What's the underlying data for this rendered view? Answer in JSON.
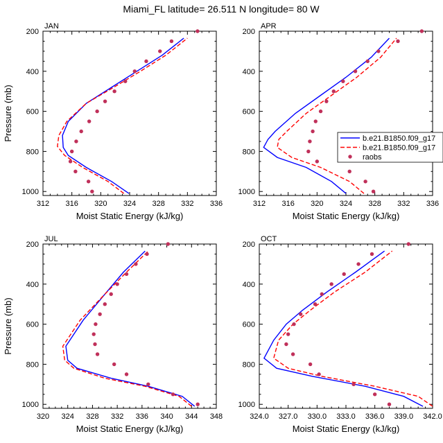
{
  "page_title": "Miami_FL  latitude= 26.511 N longitude= 80 W",
  "legend": {
    "entries": [
      {
        "label": "b.e21.B1850.f09_g17",
        "color": "#0000ff",
        "style": "solid"
      },
      {
        "label": "b.e21.B1850.f09_g17",
        "color": "#ff0000",
        "style": "dashed"
      },
      {
        "label": "raobs",
        "color": "#c0305a",
        "style": "marker"
      }
    ]
  },
  "colors": {
    "model1": "#0000ff",
    "model2": "#ff0000",
    "raobs": "#c0305a"
  },
  "chart_data": [
    {
      "type": "line",
      "title": "JAN",
      "xlabel": "Moist Static Energy (kJ/kg)",
      "ylabel": "Pressure (mb)",
      "xlim": [
        312,
        336
      ],
      "ylim": [
        1020,
        200
      ],
      "xticks": [
        "312",
        "316",
        "320",
        "324",
        "328",
        "332",
        "336"
      ],
      "yticks": [
        "200",
        "400",
        "600",
        "800",
        "1000"
      ],
      "series": [
        {
          "name": "b.e21.B1850.f09_g17",
          "x": [
            323.9,
            321.5,
            318.0,
            315.5,
            314.8,
            314.7,
            315.5,
            318.0,
            321.5,
            325.0,
            328.5,
            331.5
          ],
          "y": [
            1010,
            950,
            880,
            820,
            780,
            720,
            650,
            560,
            480,
            400,
            320,
            235
          ]
        },
        {
          "name": "b.e21.B1850.f09_g17",
          "x": [
            323.2,
            321.0,
            317.5,
            315.0,
            314.0,
            314.2,
            315.3,
            318.0,
            321.8,
            325.5,
            329.0,
            332.0
          ],
          "y": [
            1010,
            950,
            880,
            820,
            775,
            720,
            650,
            560,
            480,
            400,
            320,
            235
          ]
        },
        {
          "name": "raobs",
          "x": [
            318.8,
            318.3,
            316.5,
            315.8,
            316.0,
            316.6,
            317.3,
            318.4,
            319.5,
            320.6,
            321.9,
            323.4,
            324.7,
            326.3,
            328.2,
            329.8,
            333.4
          ],
          "y": [
            1000,
            950,
            900,
            850,
            800,
            750,
            700,
            650,
            600,
            550,
            500,
            450,
            400,
            350,
            300,
            250,
            200
          ]
        }
      ]
    },
    {
      "type": "line",
      "title": "APR",
      "xlabel": "Moist Static Energy (kJ/kg)",
      "ylabel": "",
      "xlim": [
        312,
        336
      ],
      "ylim": [
        1020,
        200
      ],
      "xticks": [
        "312",
        "316",
        "320",
        "324",
        "328",
        "332",
        "336"
      ],
      "yticks": [
        "200",
        "400",
        "600",
        "800",
        "1000"
      ],
      "series": [
        {
          "name": "b.e21.B1850.f09_g17",
          "x": [
            324.0,
            322.0,
            318.5,
            314.5,
            312.6,
            313.2,
            314.2,
            317.0,
            320.5,
            324.0,
            327.5,
            330.0
          ],
          "y": [
            1010,
            950,
            880,
            830,
            780,
            740,
            700,
            610,
            520,
            430,
            330,
            235
          ]
        },
        {
          "name": "b.e21.B1850.f09_g17",
          "x": [
            326.5,
            324.5,
            320.5,
            316.5,
            314.5,
            314.7,
            315.8,
            318.5,
            322.0,
            325.5,
            328.8,
            331.0
          ],
          "y": [
            1010,
            950,
            880,
            830,
            780,
            740,
            700,
            610,
            520,
            430,
            330,
            235
          ]
        },
        {
          "name": "raobs",
          "x": [
            327.8,
            326.7,
            324.5,
            320.0,
            318.8,
            319.0,
            319.4,
            319.8,
            320.5,
            321.3,
            322.3,
            323.6,
            325.3,
            327.0,
            328.5,
            331.2,
            334.5
          ],
          "y": [
            1000,
            950,
            900,
            850,
            800,
            750,
            700,
            650,
            600,
            550,
            500,
            450,
            400,
            350,
            300,
            250,
            200
          ]
        }
      ]
    },
    {
      "type": "line",
      "title": "JUL",
      "xlabel": "Moist Static Energy (kJ/kg)",
      "ylabel": "Pressure (mb)",
      "xlim": [
        320,
        348
      ],
      "ylim": [
        1020,
        200
      ],
      "xticks": [
        "320",
        "324",
        "328",
        "332",
        "336",
        "340",
        "344",
        "348"
      ],
      "yticks": [
        "200",
        "400",
        "600",
        "800",
        "1000"
      ],
      "series": [
        {
          "name": "b.e21.B1850.f09_g17",
          "x": [
            344.5,
            342.5,
            337.0,
            331.0,
            325.5,
            324.0,
            323.7,
            326.5,
            330.0,
            333.0,
            336.5
          ],
          "y": [
            1010,
            960,
            910,
            870,
            820,
            780,
            710,
            580,
            450,
            340,
            235
          ]
        },
        {
          "name": "b.e21.B1850.f09_g17",
          "x": [
            344.0,
            342.0,
            336.5,
            330.0,
            325.0,
            323.5,
            323.2,
            326.0,
            330.0,
            333.5,
            337.0
          ],
          "y": [
            1010,
            960,
            910,
            870,
            820,
            780,
            710,
            580,
            450,
            340,
            235
          ]
        },
        {
          "name": "raobs",
          "x": [
            345.0,
            341.0,
            337.0,
            333.5,
            331.5,
            328.8,
            328.4,
            328.2,
            328.5,
            329.2,
            330.0,
            331.0,
            332.0,
            333.5,
            335.0,
            336.8,
            340.2
          ],
          "y": [
            1000,
            950,
            900,
            850,
            800,
            750,
            700,
            650,
            600,
            550,
            500,
            450,
            400,
            350,
            300,
            250,
            200
          ]
        }
      ]
    },
    {
      "type": "line",
      "title": "OCT",
      "xlabel": "Moist Static Energy (kJ/kg)",
      "ylabel": "",
      "xlim": [
        324.0,
        342.0
      ],
      "ylim": [
        1020,
        200
      ],
      "xticks": [
        "324.0",
        "327.0",
        "330.0",
        "333.0",
        "336.0",
        "339.0",
        "342.0"
      ],
      "yticks": [
        "200",
        "400",
        "600",
        "800",
        "1000"
      ],
      "series": [
        {
          "name": "b.e21.B1850.f09_g17",
          "x": [
            341.0,
            339.0,
            335.0,
            329.5,
            325.8,
            324.5,
            325.5,
            326.8,
            328.5,
            331.0,
            334.0,
            337.0
          ],
          "y": [
            1010,
            960,
            910,
            860,
            820,
            770,
            680,
            600,
            530,
            440,
            340,
            235
          ]
        },
        {
          "name": "b.e21.B1850.f09_g17",
          "x": [
            342.0,
            340.5,
            336.0,
            330.5,
            327.0,
            325.5,
            326.0,
            327.5,
            329.3,
            331.8,
            335.0,
            337.8
          ],
          "y": [
            1010,
            960,
            910,
            860,
            820,
            770,
            680,
            600,
            530,
            440,
            340,
            235
          ]
        },
        {
          "name": "raobs",
          "x": [
            337.5,
            336.0,
            333.8,
            330.2,
            329.3,
            327.5,
            326.8,
            327.0,
            327.6,
            328.3,
            329.8,
            330.5,
            331.5,
            332.8,
            334.3,
            335.7,
            339.5
          ],
          "y": [
            1000,
            950,
            900,
            850,
            800,
            750,
            700,
            650,
            600,
            550,
            500,
            450,
            400,
            350,
            300,
            250,
            200
          ]
        }
      ]
    }
  ]
}
